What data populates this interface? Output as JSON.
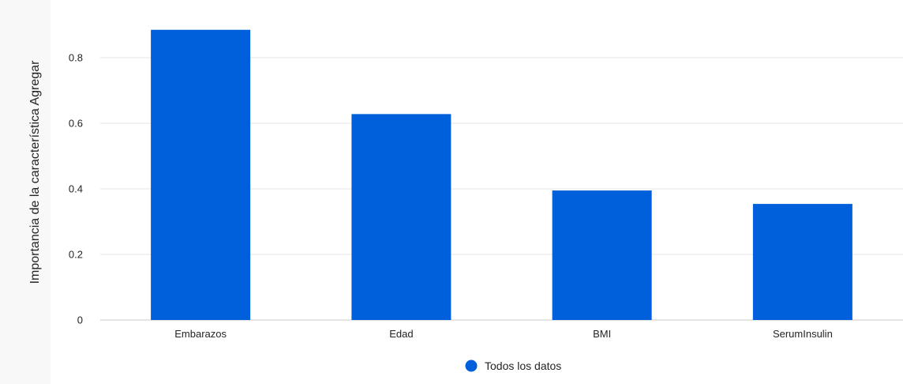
{
  "chart_data": {
    "type": "bar",
    "categories": [
      "Embarazos",
      "Edad",
      "BMI",
      "SerumInsulin"
    ],
    "series": [
      {
        "name": "Todos los datos",
        "values": [
          0.885,
          0.628,
          0.395,
          0.354
        ],
        "color": "#005fdb"
      }
    ],
    "ylabel": "Importancia de la característica Agregar",
    "xlabel": "",
    "ylim": [
      0,
      0.9
    ],
    "yticks": [
      0,
      0.2,
      0.4,
      0.6,
      0.8
    ],
    "ytick_labels": [
      "0",
      "0.2",
      "0.4",
      "0.6",
      "0.8"
    ],
    "grid": true,
    "legend": {
      "position": "bottom-center",
      "label": "Todos los datos"
    }
  },
  "colors": {
    "bar": "#005fdb",
    "grid": "#e6e6e6",
    "axis": "#c8c8c8",
    "text": "#252423",
    "side_panel": "#f8f8f8"
  }
}
